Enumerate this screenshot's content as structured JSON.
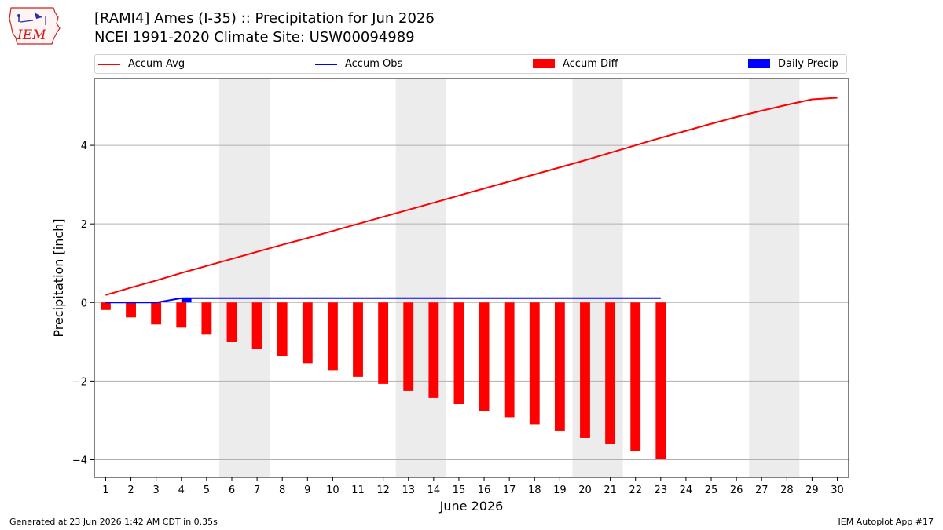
{
  "header": {
    "title_line1": "[RAMI4] Ames (I-35) :: Precipitation for Jun 2026",
    "title_line2": "NCEI 1991-2020 Climate Site: USW00094989"
  },
  "logo": {
    "text": "IEM",
    "icon": "iem-iowa-logo-icon"
  },
  "footer": {
    "left": "Generated at 23 Jun 2026 1:42 AM CDT in 0.35s",
    "right": "IEM Autoplot App #17"
  },
  "legend": [
    {
      "label": "Accum Avg",
      "kind": "line",
      "color": "#ff0000"
    },
    {
      "label": "Accum Obs",
      "kind": "line",
      "color": "#0000ff"
    },
    {
      "label": "Accum Diff",
      "kind": "patch",
      "color": "#ff0000"
    },
    {
      "label": "Daily Precip",
      "kind": "patch",
      "color": "#0000ff"
    }
  ],
  "chart_data": {
    "type": "bar",
    "xlabel": "June 2026",
    "ylabel": "Precipitation [inch]",
    "x": [
      1,
      2,
      3,
      4,
      5,
      6,
      7,
      8,
      9,
      10,
      11,
      12,
      13,
      14,
      15,
      16,
      17,
      18,
      19,
      20,
      21,
      22,
      23,
      24,
      25,
      26,
      27,
      28,
      29,
      30
    ],
    "ylim": [
      -4.45,
      5.7
    ],
    "yticks": [
      -4,
      -2,
      0,
      2,
      4
    ],
    "ytick_labels": [
      "−4",
      "−2",
      "0",
      "2",
      "4"
    ],
    "grid": true,
    "weekend_shading": [
      [
        6,
        7
      ],
      [
        13,
        14
      ],
      [
        20,
        21
      ],
      [
        27,
        28
      ]
    ],
    "series": [
      {
        "name": "Accum Avg",
        "kind": "line",
        "color": "#ff0000",
        "x": [
          1,
          2,
          3,
          4,
          5,
          6,
          7,
          8,
          9,
          10,
          11,
          12,
          13,
          14,
          15,
          16,
          17,
          18,
          19,
          20,
          21,
          22,
          23,
          24,
          25,
          26,
          27,
          28,
          29,
          30
        ],
        "values": [
          0.19,
          0.38,
          0.56,
          0.75,
          0.93,
          1.11,
          1.29,
          1.47,
          1.64,
          1.82,
          2.0,
          2.18,
          2.36,
          2.54,
          2.72,
          2.9,
          3.08,
          3.26,
          3.44,
          3.62,
          3.81,
          4.0,
          4.19,
          4.37,
          4.55,
          4.72,
          4.88,
          5.03,
          5.17,
          5.21
        ]
      },
      {
        "name": "Accum Obs",
        "kind": "line",
        "color": "#0000ff",
        "x": [
          1,
          2,
          3,
          4,
          5,
          6,
          7,
          8,
          9,
          10,
          11,
          12,
          13,
          14,
          15,
          16,
          17,
          18,
          19,
          20,
          21,
          22,
          23
        ],
        "values": [
          0,
          0,
          0,
          0.11,
          0.11,
          0.11,
          0.11,
          0.11,
          0.11,
          0.11,
          0.11,
          0.11,
          0.11,
          0.11,
          0.11,
          0.11,
          0.11,
          0.11,
          0.11,
          0.11,
          0.11,
          0.11,
          0.11
        ]
      },
      {
        "name": "Accum Diff",
        "kind": "bar",
        "color": "#ff0000",
        "x": [
          1,
          2,
          3,
          4,
          5,
          6,
          7,
          8,
          9,
          10,
          11,
          12,
          13,
          14,
          15,
          16,
          17,
          18,
          19,
          20,
          21,
          22,
          23
        ],
        "values": [
          -0.19,
          -0.38,
          -0.56,
          -0.64,
          -0.82,
          -1.0,
          -1.18,
          -1.36,
          -1.54,
          -1.72,
          -1.89,
          -2.07,
          -2.25,
          -2.43,
          -2.59,
          -2.76,
          -2.92,
          -3.1,
          -3.27,
          -3.45,
          -3.61,
          -3.79,
          -3.98
        ]
      },
      {
        "name": "Daily Precip",
        "kind": "bar",
        "color": "#0000ff",
        "x": [
          1,
          2,
          3,
          4,
          5,
          6,
          7,
          8,
          9,
          10,
          11,
          12,
          13,
          14,
          15,
          16,
          17,
          18,
          19,
          20,
          21,
          22,
          23
        ],
        "values": [
          0,
          0,
          0,
          0.11,
          0,
          0,
          0,
          0,
          0,
          0,
          0,
          0,
          0,
          0,
          0,
          0,
          0,
          0,
          0,
          0,
          0,
          0,
          0
        ]
      }
    ]
  }
}
